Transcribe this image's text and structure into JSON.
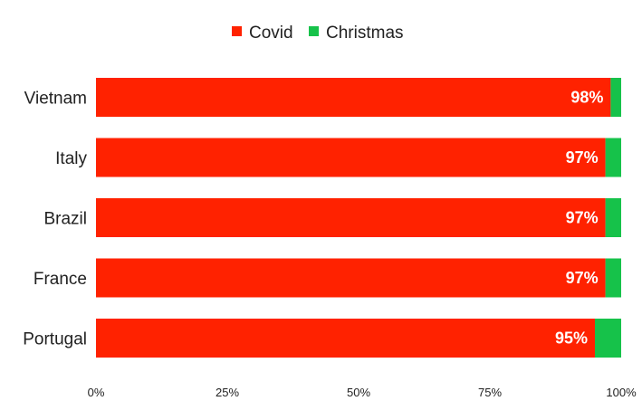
{
  "chart_data": {
    "type": "bar",
    "orientation": "horizontal",
    "stacked": "percent",
    "categories": [
      "Vietnam",
      "Italy",
      "Brazil",
      "France",
      "Portugal"
    ],
    "series": [
      {
        "name": "Covid",
        "color": "#ff2200",
        "values": [
          98,
          97,
          97,
          97,
          95
        ]
      },
      {
        "name": "Christmas",
        "color": "#16c24a",
        "values": [
          2,
          3,
          3,
          3,
          5
        ]
      }
    ],
    "data_labels": [
      "98%",
      "97%",
      "97%",
      "97%",
      "95%"
    ],
    "xticks": [
      "0%",
      "25%",
      "50%",
      "75%",
      "100%"
    ],
    "xlim": [
      0,
      100
    ],
    "title": "",
    "xlabel": "",
    "ylabel": "",
    "grid": false,
    "legend_position": "top-center"
  }
}
